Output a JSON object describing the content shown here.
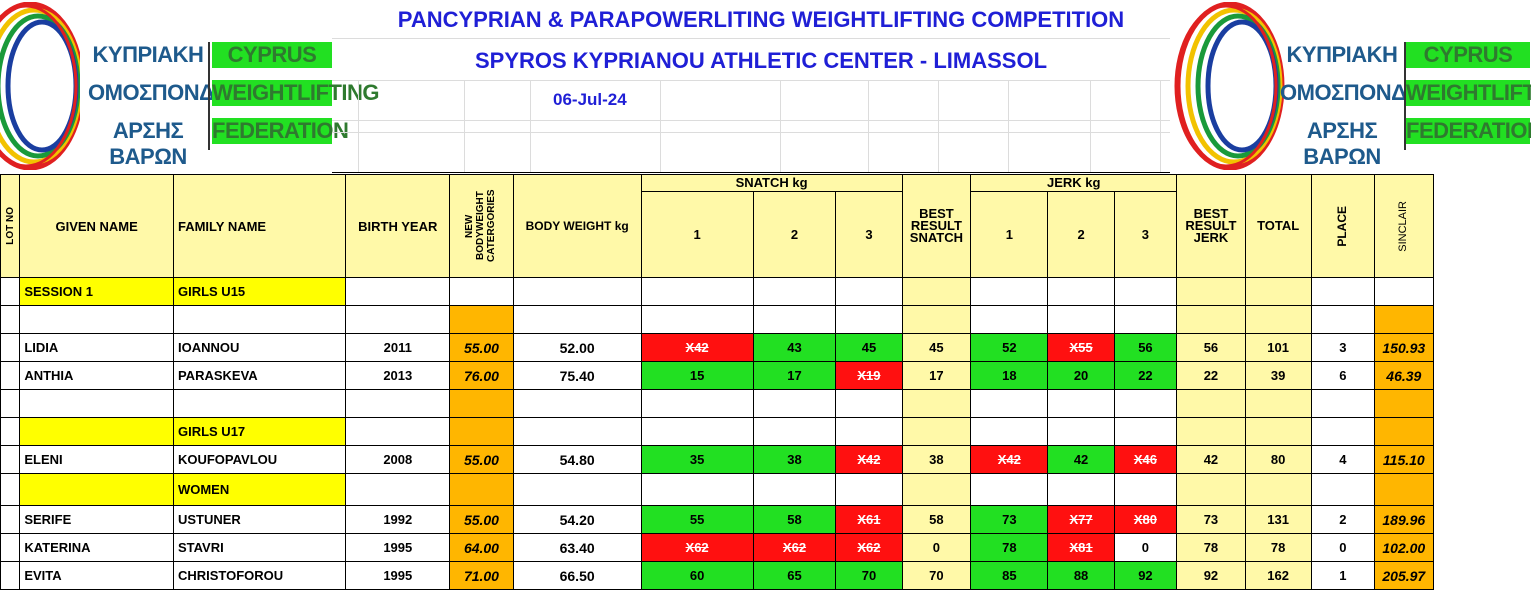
{
  "header": {
    "title1": "PANCYPRIAN & PARAPOWERLITING WEIGHTLIFTING COMPETITION",
    "title2": "SPYROS KYPRIANOU ATHLETIC CENTER - LIMASSOL",
    "date": "06-Jul-24",
    "logo": {
      "gr1": "ΚΥΠΡΙΑΚΗ",
      "gr2": "ΟΜΟΣΠΟΝΔΙΑ",
      "gr3": "ΑΡΣΗΣ ΒΑΡΩΝ",
      "en1": "CYPRUS",
      "en2": "WEIGHTLIFTING",
      "en3": "FEDERATION"
    }
  },
  "columns": {
    "lot": "LOT NO",
    "given": "GIVEN NAME",
    "family": "FAMILY NAME",
    "birth": "BIRTH YEAR",
    "category": "NEW BODYWEIGHT CATERGORIES",
    "bodyweight": "BODY WEIGHT kg",
    "snatch": "SNATCH kg",
    "best_snatch": "BEST RESULT SNATCH",
    "jerk": "JERK kg",
    "best_jerk": "BEST RESULT JERK",
    "total": "TOTAL",
    "place": "PLACE",
    "sinclair": "SINCLAIR",
    "a1": "1",
    "a2": "2",
    "a3": "3"
  },
  "sessions": {
    "session1": "SESSION 1",
    "girls_u15": "GIRLS U15",
    "girls_u17": "GIRLS U17",
    "women": "WOMEN"
  },
  "athletes": [
    {
      "given": "LIDIA",
      "family": "IOANNOU",
      "birth": "2011",
      "cat": "55.00",
      "bw": "52.00",
      "s1": "X42",
      "s2": "43",
      "s3": "45",
      "bs": "45",
      "j1": "52",
      "j2": "X55",
      "j3": "56",
      "bj": "56",
      "total": "101",
      "place": "3",
      "sinclair": "150.93"
    },
    {
      "given": "ANTHIA",
      "family": "PARASKEVA",
      "birth": "2013",
      "cat": "76.00",
      "bw": "75.40",
      "s1": "15",
      "s2": "17",
      "s3": "X19",
      "bs": "17",
      "j1": "18",
      "j2": "20",
      "j3": "22",
      "bj": "22",
      "total": "39",
      "place": "6",
      "sinclair": "46.39"
    },
    {
      "given": "ELENI",
      "family": "KOUFOPAVLOU",
      "birth": "2008",
      "cat": "55.00",
      "bw": "54.80",
      "s1": "35",
      "s2": "38",
      "s3": "X42",
      "bs": "38",
      "j1": "X42",
      "j2": "42",
      "j3": "X46",
      "bj": "42",
      "total": "80",
      "place": "4",
      "sinclair": "115.10"
    },
    {
      "given": "SERIFE",
      "family": "USTUNER",
      "birth": "1992",
      "cat": "55.00",
      "bw": "54.20",
      "s1": "55",
      "s2": "58",
      "s3": "X61",
      "bs": "58",
      "j1": "73",
      "j2": "X77",
      "j3": "X80",
      "bj": "73",
      "total": "131",
      "place": "2",
      "sinclair": "189.96"
    },
    {
      "given": "KATERINA",
      "family": "STAVRI",
      "birth": "1995",
      "cat": "64.00",
      "bw": "63.40",
      "s1": "X62",
      "s2": "X62",
      "s3": "X62",
      "bs": "0",
      "j1": "78",
      "j2": "X81",
      "j3": "0",
      "bj": "78",
      "total": "78",
      "place": "0",
      "sinclair": "102.00"
    },
    {
      "given": "EVITA",
      "family": "CHRISTOFOROU",
      "birth": "1995",
      "cat": "71.00",
      "bw": "66.50",
      "s1": "60",
      "s2": "65",
      "s3": "70",
      "bs": "70",
      "j1": "85",
      "j2": "88",
      "j3": "92",
      "bj": "92",
      "total": "162",
      "place": "1",
      "sinclair": "205.97"
    }
  ],
  "colors": {
    "title": "#1f1fd6",
    "good_lift": "#22e022",
    "no_lift": "#ff1010",
    "header_yellow": "#fff9a8",
    "session_yellow": "#ffff00",
    "orange": "#ffb600"
  }
}
